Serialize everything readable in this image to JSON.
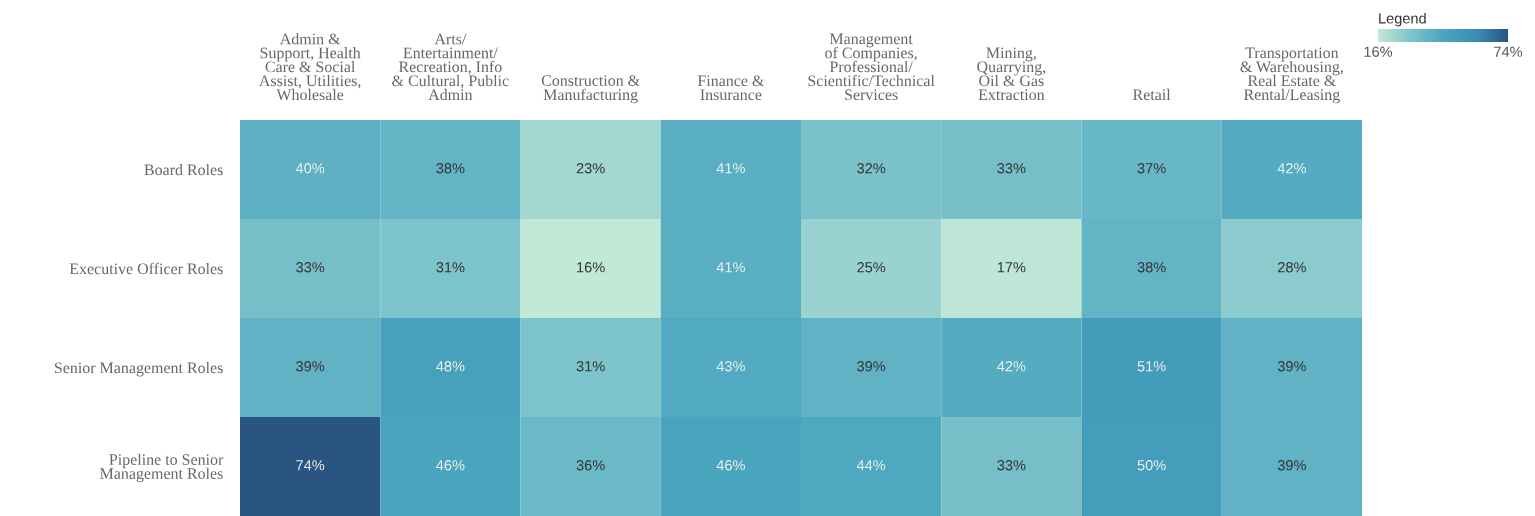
{
  "chart_data": {
    "type": "heatmap",
    "categories": [
      "Admin &\nSupport, Health\nCare & Social\nAssist, Utilities,\nWholesale",
      "Arts/\nEntertainment/\nRecreation, Info\n& Cultural, Public\nAdmin",
      "Construction &\nManufacturing",
      "Finance &\nInsurance",
      "Management\nof Companies,\nProfessional/\nScientific/Technical\nServices",
      "Mining,\nQuarrying,\nOil & Gas\nExtraction",
      "Retail",
      "Transportation\n& Warehousing,\nReal Estate &\nRental/Leasing"
    ],
    "y_categories": [
      "Board Roles",
      "Executive Officer Roles",
      "Senior Management Roles",
      "Pipeline to Senior\nManagement Roles"
    ],
    "cells": [
      [
        40,
        38,
        23,
        41,
        32,
        33,
        37,
        42
      ],
      [
        33,
        31,
        16,
        41,
        25,
        17,
        38,
        28
      ],
      [
        39,
        48,
        31,
        43,
        39,
        42,
        51,
        39
      ],
      [
        74,
        46,
        36,
        46,
        44,
        33,
        50,
        39
      ]
    ],
    "cell_labels": [
      [
        "40%",
        "38%",
        "23%",
        "41%",
        "32%",
        "33%",
        "37%",
        "42%"
      ],
      [
        "33%",
        "31%",
        "16%",
        "41%",
        "25%",
        "17%",
        "38%",
        "28%"
      ],
      [
        "39%",
        "48%",
        "31%",
        "43%",
        "39%",
        "42%",
        "51%",
        "39%"
      ],
      [
        "74%",
        "46%",
        "36%",
        "46%",
        "44%",
        "33%",
        "50%",
        "39%"
      ]
    ],
    "legend_title": "Legend",
    "clim": [
      16,
      74
    ],
    "cticks": [
      {
        "value": 16,
        "label": "16%"
      },
      {
        "value": 74,
        "label": "74%"
      }
    ]
  }
}
